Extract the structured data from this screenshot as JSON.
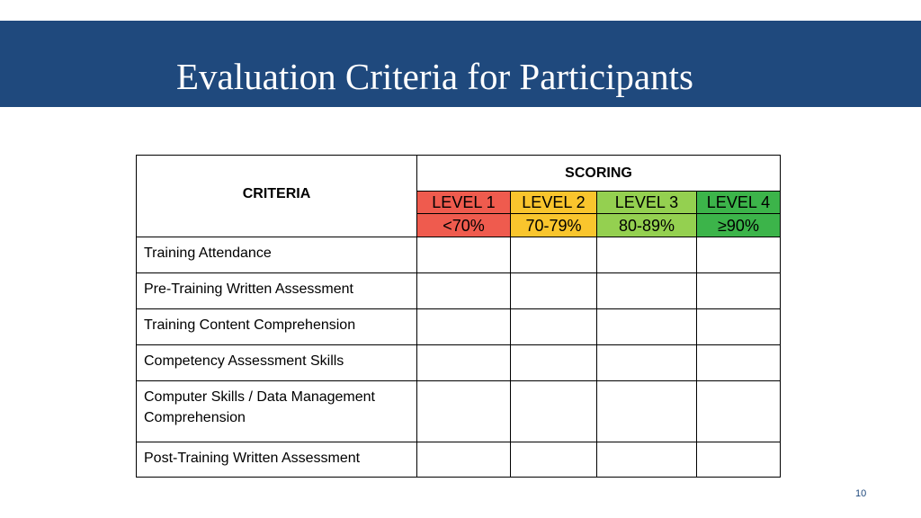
{
  "header": {
    "title": "Evaluation Criteria for Participants"
  },
  "table": {
    "criteria_header": "CRITERIA",
    "scoring_header": "SCORING",
    "levels": [
      {
        "label": "LEVEL 1",
        "range": "<70%",
        "color": "#ef5b4e"
      },
      {
        "label": "LEVEL 2",
        "range": "70-79%",
        "color": "#f9c52d"
      },
      {
        "label": "LEVEL 3",
        "range": "80-89%",
        "color": "#94d050"
      },
      {
        "label": "LEVEL 4",
        "range": "≥90%",
        "color": "#3cb44a"
      }
    ],
    "rows": [
      "Training Attendance",
      "Pre-Training Written Assessment",
      "Training Content Comprehension",
      "Competency Assessment Skills",
      "Computer Skills / Data Management Comprehension",
      "Post-Training Written Assessment"
    ]
  },
  "footer": {
    "page_number": "10"
  },
  "colors": {
    "title_bar": "#1f497d"
  }
}
